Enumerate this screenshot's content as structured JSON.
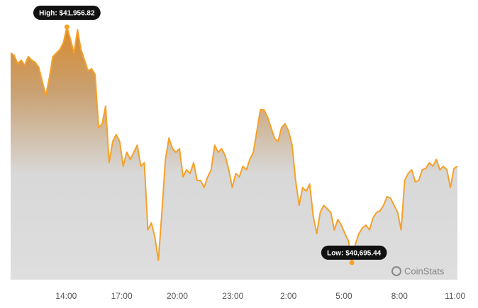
{
  "chart_data": {
    "type": "area",
    "annotations": [
      "High: $41,956.82",
      "Low: $40,695.44"
    ],
    "watermark": "CoinStats",
    "color": "#f5a12a",
    "xlim": [
      11,
      35.13
    ],
    "xticks": [
      {
        "value": 14,
        "label": "14:00"
      },
      {
        "value": 17,
        "label": "17:00"
      },
      {
        "value": 20,
        "label": "20:00"
      },
      {
        "value": 23,
        "label": "23:00"
      },
      {
        "value": 26,
        "label": "2:00"
      },
      {
        "value": 29,
        "label": "5:00"
      },
      {
        "value": 32,
        "label": "8:00"
      },
      {
        "value": 35,
        "label": "11:00"
      }
    ],
    "ylim": [
      40604,
      42101
    ],
    "x": [
      11,
      11.19,
      11.38,
      11.57,
      11.76,
      11.95,
      12.14,
      12.33,
      12.52,
      12.71,
      12.9,
      13.09,
      13.28,
      13.47,
      13.66,
      13.85,
      14.04,
      14.23,
      14.42,
      14.61,
      14.8,
      14.99,
      15.18,
      15.37,
      15.56,
      15.75,
      15.94,
      16.13,
      16.32,
      16.51,
      16.7,
      16.89,
      17.08,
      17.27,
      17.46,
      17.65,
      17.84,
      18.03,
      18.22,
      18.41,
      18.6,
      18.79,
      18.98,
      19.17,
      19.36,
      19.55,
      19.74,
      19.93,
      20.12,
      20.31,
      20.5,
      20.69,
      20.88,
      21.07,
      21.26,
      21.45,
      21.64,
      21.83,
      22.02,
      22.21,
      22.4,
      22.59,
      22.78,
      22.97,
      23.16,
      23.35,
      23.54,
      23.73,
      23.92,
      24.11,
      24.3,
      24.49,
      24.68,
      24.87,
      25.06,
      25.25,
      25.44,
      25.63,
      25.82,
      26.01,
      26.2,
      26.39,
      26.58,
      26.77,
      26.96,
      27.15,
      27.34,
      27.53,
      27.72,
      27.91,
      28.1,
      28.29,
      28.48,
      28.67,
      28.86,
      29.05,
      29.24,
      29.43,
      29.62,
      29.81,
      30,
      30.19,
      30.38,
      30.57,
      30.76,
      30.95,
      31.14,
      31.33,
      31.52,
      31.71,
      31.9,
      32.09,
      32.28,
      32.47,
      32.66,
      32.85,
      33.04,
      33.23,
      33.42,
      33.61,
      33.8,
      33.99,
      34.18,
      34.37,
      34.56,
      34.75,
      34.94,
      35.13
    ],
    "values": [
      41817,
      41805,
      41760,
      41779,
      41752,
      41798,
      41779,
      41767,
      41741,
      41665,
      41589,
      41684,
      41798,
      41817,
      41836,
      41873,
      41956.82,
      41892,
      41817,
      41942,
      41836,
      41779,
      41722,
      41733,
      41703,
      41419,
      41438,
      41533,
      41230,
      41343,
      41381,
      41343,
      41211,
      41286,
      41248,
      41286,
      41324,
      41211,
      41230,
      40870,
      40908,
      40832,
      40707,
      40964,
      41248,
      41362,
      41305,
      41286,
      41305,
      41154,
      41192,
      41173,
      41230,
      41135,
      41135,
      41097,
      41154,
      41192,
      41324,
      41286,
      41305,
      41267,
      41192,
      41097,
      41173,
      41154,
      41211,
      41192,
      41248,
      41286,
      41400,
      41514,
      41514,
      41476,
      41419,
      41362,
      41343,
      41419,
      41438,
      41400,
      41324,
      41135,
      41002,
      41097,
      41078,
      41116,
      40945,
      40851,
      40964,
      41002,
      40983,
      40964,
      40870,
      40926,
      40896,
      40851,
      40813,
      40695.44,
      40794,
      40851,
      40881,
      40896,
      40870,
      40934,
      40964,
      40972,
      41002,
      41048,
      41040,
      41002,
      40964,
      40870,
      41135,
      41173,
      41192,
      41128,
      41135,
      41192,
      41199,
      41230,
      41211,
      41248,
      41192,
      41211,
      41192,
      41097,
      41199,
      41211
    ]
  }
}
